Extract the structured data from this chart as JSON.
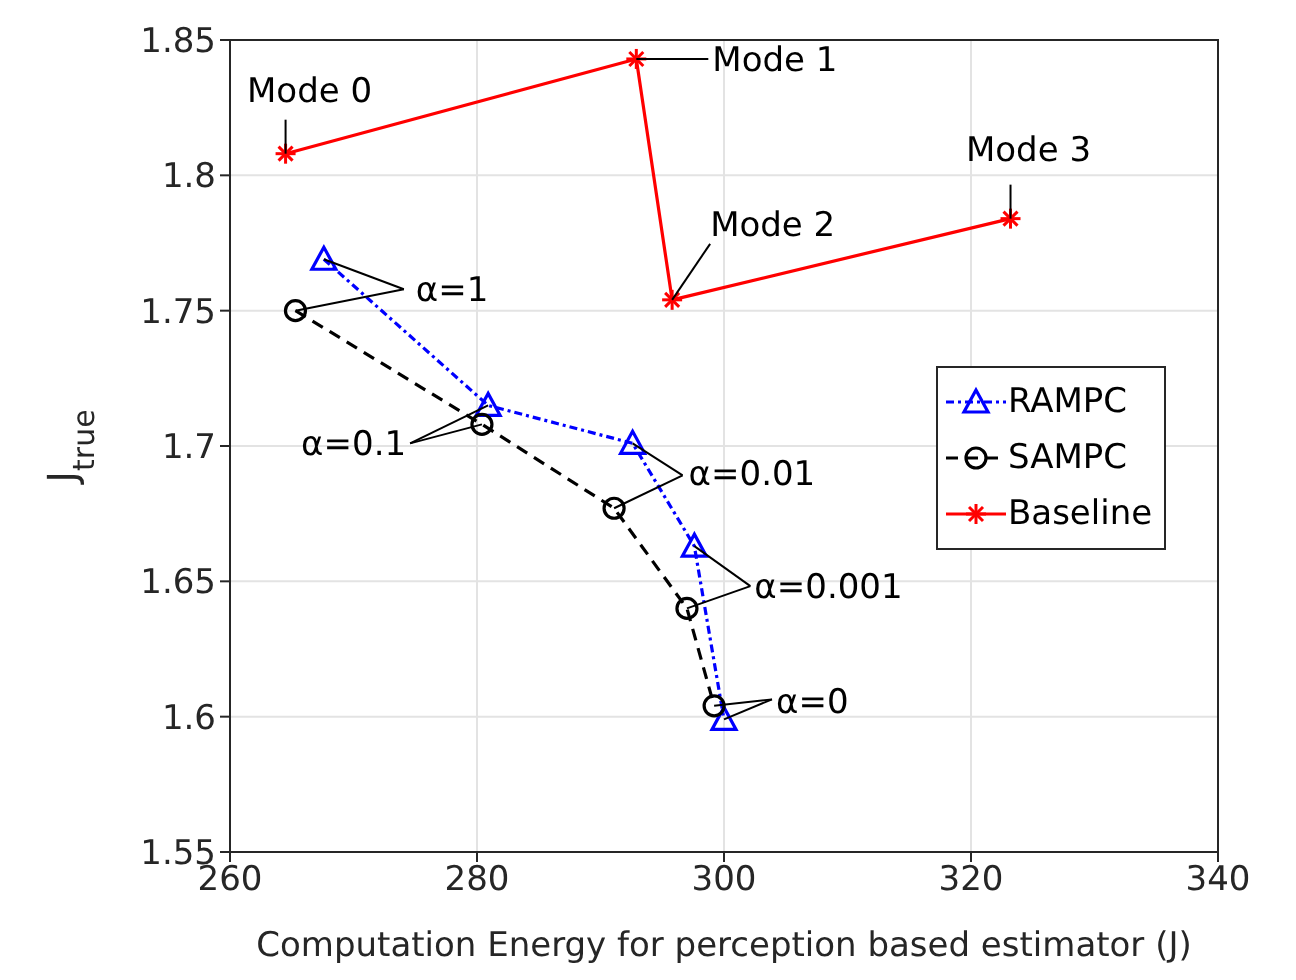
{
  "chart_data": {
    "type": "line",
    "xlabel": "Computation Energy for perception based estimator (J)",
    "ylabel": "J$_{true}$",
    "xlim": [
      260,
      340
    ],
    "xticks": [
      260,
      280,
      300,
      320,
      340
    ],
    "ylim": [
      1.55,
      1.85
    ],
    "yticks": [
      1.55,
      1.6,
      1.65,
      1.7,
      1.75,
      1.8,
      1.85
    ],
    "grid": true,
    "legend": "right",
    "series": [
      {
        "name": "RAMPC",
        "color": "#0000ff",
        "marker": "triangle",
        "line_style": "dotted",
        "x": [
          267.6,
          280.9,
          292.6,
          297.6,
          300.0
        ],
        "values": [
          1.769,
          1.715,
          1.701,
          1.663,
          1.599
        ]
      },
      {
        "name": "SAMPC",
        "color": "#000000",
        "marker": "circle",
        "line_style": "dashed",
        "x": [
          265.3,
          280.4,
          291.1,
          297.0,
          299.2
        ],
        "values": [
          1.75,
          1.708,
          1.677,
          1.64,
          1.604
        ]
      },
      {
        "name": "Baseline",
        "color": "#ff0000",
        "marker": "cross",
        "line_style": "solid",
        "x": [
          264.5,
          292.9,
          295.8,
          323.2
        ],
        "values": [
          1.808,
          1.843,
          1.754,
          1.784
        ]
      }
    ],
    "annotations": [
      {
        "text": "Mode 0",
        "x": 264.5,
        "y": 1.808
      },
      {
        "text": "Mode 1",
        "x": 292.9,
        "y": 1.843
      },
      {
        "text": "Mode 2",
        "x": 295.8,
        "y": 1.754
      },
      {
        "text": "Mode 3",
        "x": 323.2,
        "y": 1.784
      },
      {
        "text": "α=1",
        "x": 267.6,
        "y": 1.769
      },
      {
        "text": "α=0.1",
        "x": 280.9,
        "y": 1.715
      },
      {
        "text": "α=0.01",
        "x": 292.6,
        "y": 1.701
      },
      {
        "text": "α=0.001",
        "x": 297.6,
        "y": 1.663
      },
      {
        "text": "α=0",
        "x": 300.0,
        "y": 1.599
      }
    ]
  }
}
